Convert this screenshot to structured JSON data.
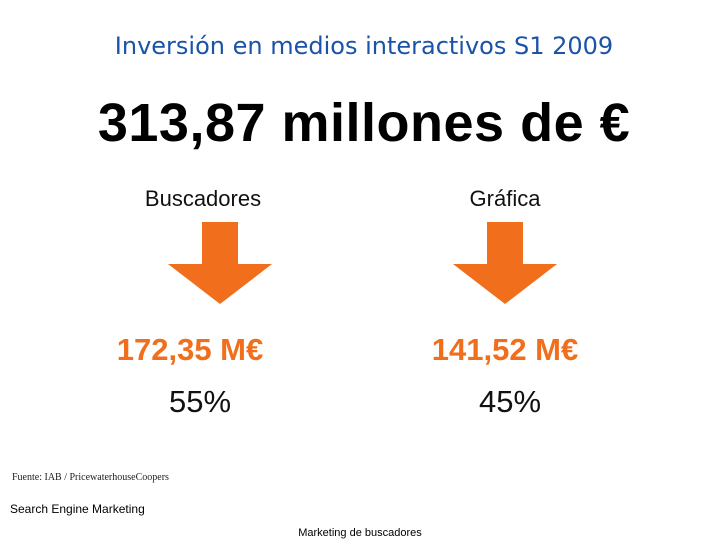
{
  "slide": {
    "title": "Inversión en medios interactivos S1 2009",
    "headline": "313,87 millones de €",
    "accent_color": "#f06e1c",
    "title_color": "#1a53a8",
    "categories": [
      {
        "label": "Buscadores",
        "amount": "172,35 M€",
        "percent": "55%",
        "icon": "down-arrow-icon"
      },
      {
        "label": "Gráfica",
        "amount": "141,52 M€",
        "percent": "45%",
        "icon": "down-arrow-icon"
      }
    ],
    "source": "Fuente: IAB / PricewaterhouseCoopers",
    "footer_left": "Search Engine Marketing",
    "footer_center": "Marketing de buscadores"
  }
}
